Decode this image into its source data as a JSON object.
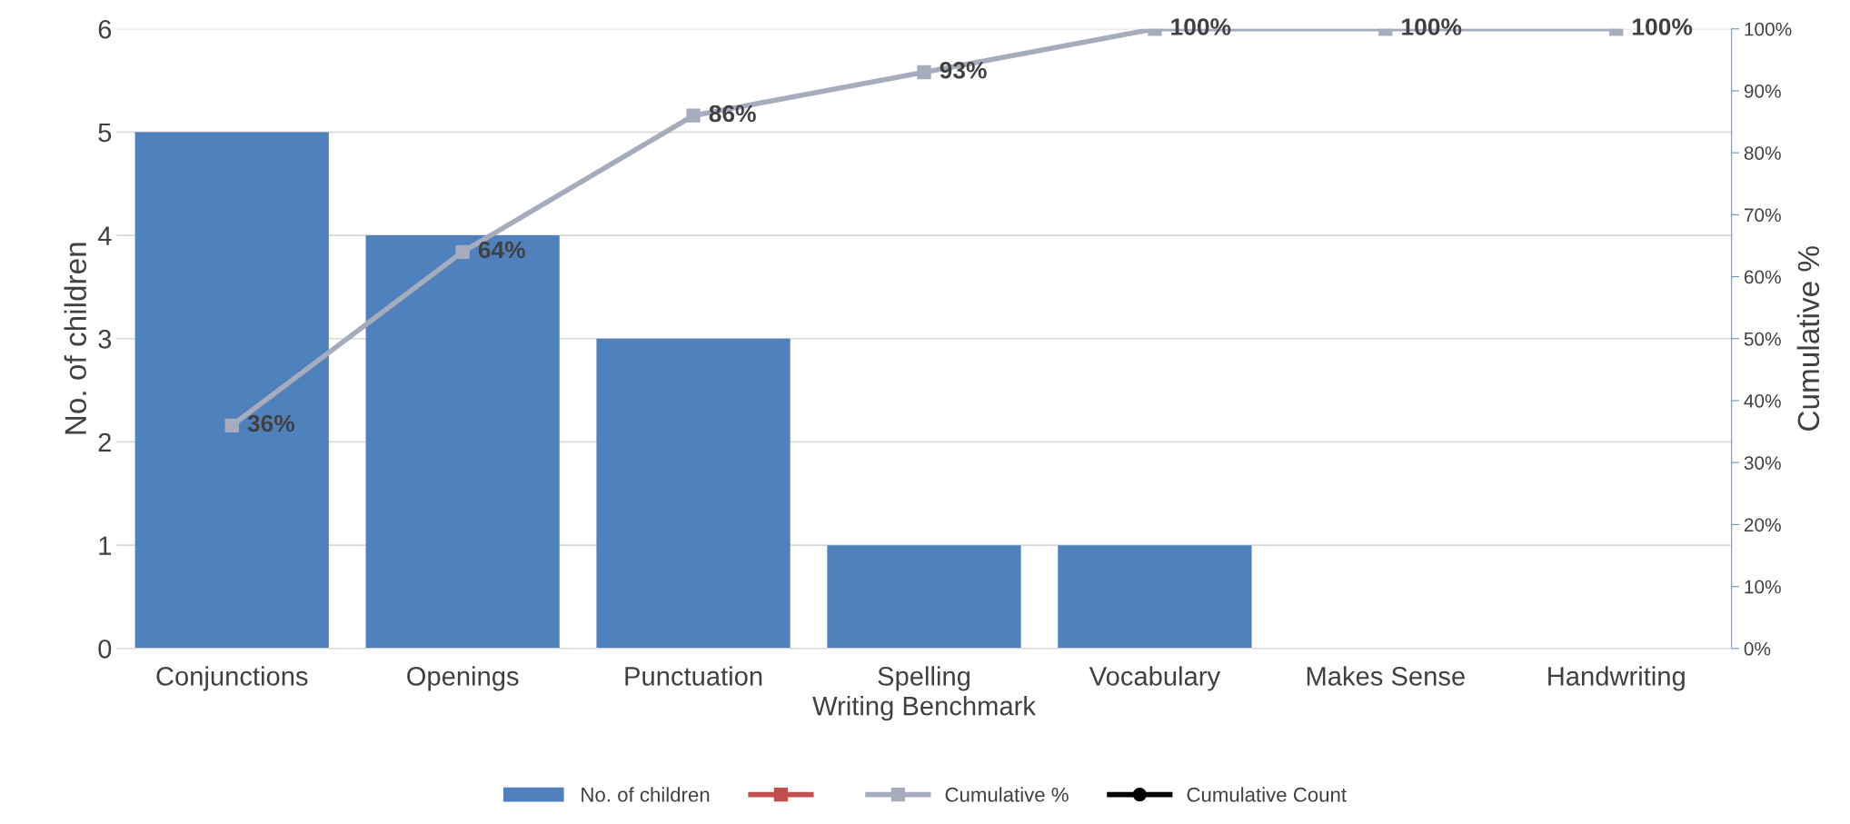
{
  "chart_data": {
    "type": "bar",
    "xlabel": "Writing Benchmark",
    "ylabel": "No. of children",
    "y2label": "Cumulative %",
    "categories": [
      "Conjunctions",
      "Openings",
      "Punctuation",
      "Spelling",
      "Vocabulary",
      "Makes Sense",
      "Handwriting"
    ],
    "series": [
      {
        "name": "No. of children",
        "color": "#4f81bd",
        "values": [
          5,
          4,
          3,
          1,
          1,
          0,
          0
        ]
      },
      {
        "type": "line",
        "color": "#c0504d",
        "marker": "square",
        "values": [
          null,
          null,
          null,
          null,
          null,
          null,
          null
        ]
      },
      {
        "name": "Cumulative %",
        "type": "line",
        "axis": "y2",
        "color": "#a5acbd",
        "marker": "square",
        "values": [
          36,
          64,
          86,
          93,
          100,
          100,
          100
        ],
        "value_labels": [
          "36%",
          "64%",
          "86%",
          "93%",
          "100%",
          "100%",
          "100%"
        ]
      },
      {
        "name": "Cumulative Count",
        "type": "line",
        "color": "#000000",
        "marker": "circle",
        "values": [
          null,
          null,
          null,
          null,
          null,
          null,
          null
        ]
      }
    ],
    "ylim": [
      0,
      6
    ],
    "yticks": [
      0,
      1,
      2,
      3,
      4,
      5,
      6
    ],
    "y2lim": [
      0,
      100
    ],
    "y2ticks": [
      {
        "value": 0,
        "label": "0%"
      },
      {
        "value": 10,
        "label": "10%"
      },
      {
        "value": 20,
        "label": "20%"
      },
      {
        "value": 30,
        "label": "30%"
      },
      {
        "value": 40,
        "label": "40%"
      },
      {
        "value": 50,
        "label": "50%"
      },
      {
        "value": 60,
        "label": "60%"
      },
      {
        "value": 70,
        "label": "70%"
      },
      {
        "value": 80,
        "label": "80%"
      },
      {
        "value": 90,
        "label": "90%"
      },
      {
        "value": 100,
        "label": "100%"
      }
    ],
    "grid": "y",
    "legend": "bottom"
  }
}
